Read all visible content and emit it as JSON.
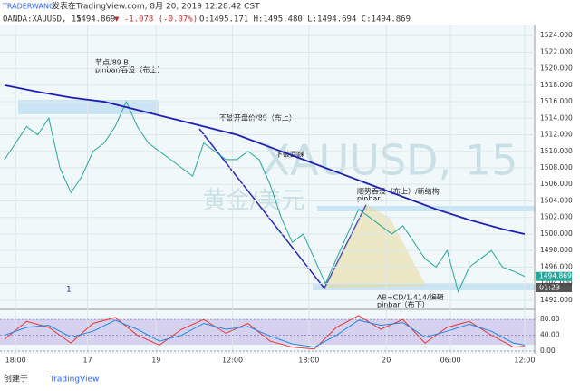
{
  "header": {
    "author": "TRADERWANG",
    "published": "发表在TradingView.com, 8月 20, 2019 12:28:42 CST",
    "symbol": "OANDA:XAUUSD, 15",
    "last": "1494.869",
    "change": "▼ -1.078 (-0.07%)",
    "ohlc": "O:1495.171 H:1495.480 L:1494.694 C:1494.869"
  },
  "watermark": {
    "symbol": "XAUUSD, 15",
    "name": "黄金/美元"
  },
  "annotations": [
    "节点/89  B",
    "pinbar/吞没（布上）",
    "不破开盘价/89（布上）",
    "下破回踩",
    "顺势吞没（布上）/新结构",
    "pinbar",
    "AB=CD/1.414/编辑",
    "pinbar（布下）",
    "1"
  ],
  "countdown": "01:23",
  "footer": {
    "created": "创建于",
    "brand": "TradingView"
  },
  "chart_data": [
    {
      "type": "line",
      "xlim": [
        0,
        47.5
      ],
      "ylim": [
        1491,
        1525
      ],
      "xticks": [
        {
          "value": 1,
          "label": "18:00"
        },
        {
          "value": 7.5,
          "label": "17"
        },
        {
          "value": 13.7,
          "label": "19"
        },
        {
          "value": 20.6,
          "label": "12:00"
        },
        {
          "value": 27.5,
          "label": "18:00"
        },
        {
          "value": 34.5,
          "label": "20"
        },
        {
          "value": 40.3,
          "label": "06:00"
        },
        {
          "value": 47,
          "label": "12:00"
        }
      ],
      "yticks": [
        {
          "value": 1492,
          "label": "1492.000"
        },
        {
          "value": 1494,
          "label": "1494.000"
        },
        {
          "value": 1496,
          "label": "1496.000"
        },
        {
          "value": 1498,
          "label": "1498.000"
        },
        {
          "value": 1500,
          "label": "1500.000"
        },
        {
          "value": 1502,
          "label": "1502.000"
        },
        {
          "value": 1504,
          "label": "1504.000"
        },
        {
          "value": 1506,
          "label": "1506.000"
        },
        {
          "value": 1508,
          "label": "1508.000"
        },
        {
          "value": 1510,
          "label": "1510.000"
        },
        {
          "value": 1512,
          "label": "1512.000"
        },
        {
          "value": 1514,
          "label": "1514.000"
        },
        {
          "value": 1516,
          "label": "1516.000"
        },
        {
          "value": 1518,
          "label": "1518.000"
        },
        {
          "value": 1520,
          "label": "1520.000"
        },
        {
          "value": 1522,
          "label": "1522.000"
        },
        {
          "value": 1524,
          "label": "1524.000"
        }
      ],
      "grid": true,
      "series": [
        {
          "name": "XAUUSD",
          "color": "#26a69a",
          "x": [
            0,
            1,
            2,
            3,
            4,
            5,
            6,
            7,
            8,
            9,
            10,
            11,
            12,
            13,
            14,
            15,
            16,
            17,
            18,
            19,
            20,
            21,
            22,
            23,
            24,
            25,
            26,
            27,
            28,
            29,
            30,
            31,
            32,
            33,
            34,
            35,
            36,
            37,
            38,
            39,
            40,
            41,
            42,
            43,
            44,
            45,
            46,
            47
          ],
          "values": [
            1509,
            1511,
            1513,
            1512,
            1514,
            1508,
            1505,
            1507,
            1510,
            1511,
            1513,
            1516,
            1513,
            1511,
            1510,
            1509,
            1508,
            1507,
            1511,
            1510,
            1509,
            1509,
            1510,
            1509,
            1506,
            1502,
            1499,
            1500,
            1497,
            1494,
            1497,
            1500,
            1503,
            1502,
            1501,
            1500,
            1501,
            1499,
            1497,
            1496,
            1498,
            1493,
            1496,
            1497,
            1498,
            1496,
            1495.5,
            1494.869
          ]
        },
        {
          "name": "MA",
          "color": "#1f1fb4",
          "x": [
            0,
            3,
            6,
            9,
            12,
            15,
            18,
            21,
            24,
            27,
            30,
            33,
            36,
            39,
            42,
            45,
            47
          ],
          "values": [
            1518,
            1517.2,
            1516.5,
            1516,
            1515,
            1514,
            1513,
            1512,
            1510.5,
            1509,
            1507.5,
            1506,
            1504.5,
            1503,
            1501.7,
            1500.6,
            1500
          ]
        }
      ]
    },
    {
      "type": "line",
      "xlim": [
        0,
        47.5
      ],
      "ylim": [
        -7,
        101
      ],
      "yticks": [
        {
          "value": 80,
          "label": "80.00"
        },
        {
          "value": 40,
          "label": "40.00"
        },
        {
          "value": 0,
          "label": "0.00"
        }
      ],
      "series": [
        {
          "name": "K",
          "color": "#e53935",
          "x": [
            0,
            2,
            4,
            6,
            8,
            10,
            12,
            14,
            16,
            18,
            20,
            22,
            24,
            26,
            28,
            30,
            32,
            34,
            36,
            38,
            40,
            42,
            44,
            46,
            47
          ],
          "values": [
            30,
            75,
            60,
            20,
            70,
            85,
            40,
            15,
            55,
            80,
            45,
            70,
            25,
            10,
            5,
            60,
            90,
            55,
            80,
            20,
            60,
            75,
            40,
            10,
            12
          ]
        },
        {
          "name": "D",
          "color": "#1e88e5",
          "x": [
            0,
            2,
            4,
            6,
            8,
            10,
            12,
            14,
            16,
            18,
            20,
            22,
            24,
            26,
            28,
            30,
            32,
            34,
            36,
            38,
            40,
            42,
            44,
            46,
            47
          ],
          "values": [
            40,
            60,
            65,
            35,
            50,
            78,
            55,
            25,
            40,
            70,
            55,
            62,
            38,
            18,
            10,
            40,
            78,
            65,
            72,
            35,
            50,
            68,
            50,
            20,
            15
          ]
        }
      ]
    }
  ]
}
